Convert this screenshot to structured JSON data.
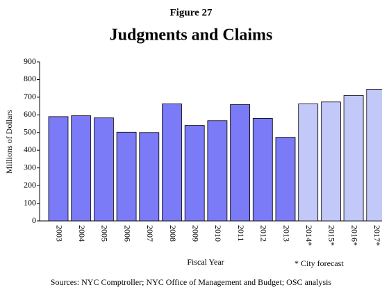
{
  "chart_data": {
    "type": "bar",
    "figure_label": "Figure 27",
    "title": "Judgments and Claims",
    "y_label": "Millions of Dollars",
    "x_label": "Fiscal Year",
    "annotation": "* City forecast",
    "source": "Sources: NYC Comptroller; NYC Office of Management and Budget; OSC analysis",
    "categories": [
      "2003",
      "2004",
      "2005",
      "2006",
      "2007",
      "2008",
      "2009",
      "2010",
      "2011",
      "2012",
      "2013",
      "2014*",
      "2015*",
      "2016*",
      "2017*"
    ],
    "values": [
      590,
      595,
      583,
      502,
      500,
      662,
      540,
      567,
      658,
      580,
      473,
      662,
      673,
      710,
      745
    ],
    "colors": [
      "#7b7bf7",
      "#7b7bf7",
      "#7b7bf7",
      "#7b7bf7",
      "#7b7bf7",
      "#7b7bf7",
      "#7b7bf7",
      "#7b7bf7",
      "#7b7bf7",
      "#7b7bf7",
      "#7b7bf7",
      "#c2c8f8",
      "#c2c8f8",
      "#c2c8f8",
      "#c2c8f8"
    ],
    "ylim": [
      0,
      900
    ],
    "yticks": [
      0,
      100,
      200,
      300,
      400,
      500,
      600,
      700,
      800,
      900
    ],
    "grid": false
  }
}
